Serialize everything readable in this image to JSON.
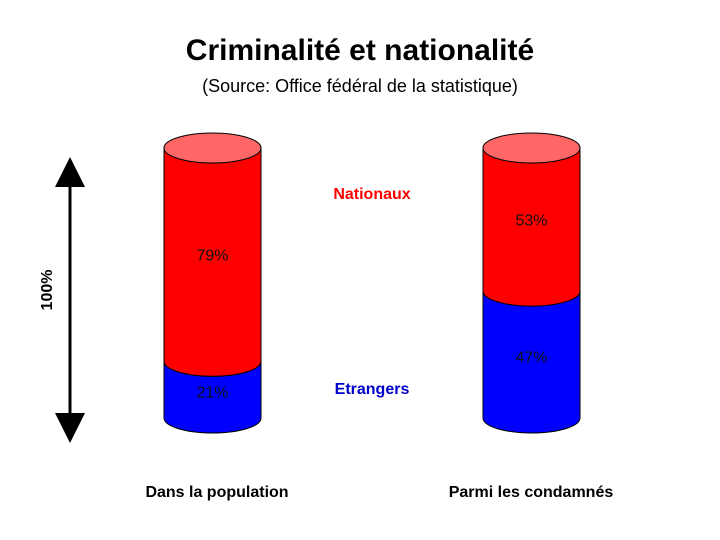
{
  "chart_data": {
    "type": "bar",
    "subtype": "stacked-cylinder-100pct",
    "title": "Criminalité et nationalité",
    "subtitle": "(Source: Office fédéral de la statistique)",
    "ylabel": "100%",
    "ylim": [
      0,
      100
    ],
    "categories": [
      "Dans la population",
      "Parmi les condamnés"
    ],
    "series": [
      {
        "name": "Etrangers",
        "color": "#0000ff",
        "values": [
          21,
          47
        ],
        "labels": [
          "21%",
          "47%"
        ]
      },
      {
        "name": "Nationaux",
        "color": "#ff0000",
        "values": [
          79,
          53
        ],
        "labels": [
          "79%",
          "53%"
        ]
      }
    ],
    "legend_placement": "center-between-bars",
    "top_color": "#ff6666"
  }
}
